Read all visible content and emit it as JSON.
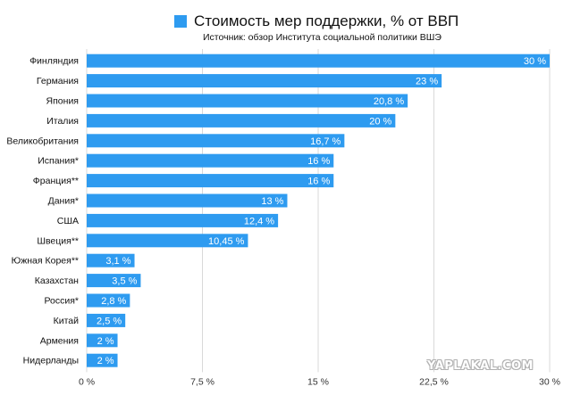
{
  "chart_data": {
    "type": "bar",
    "orientation": "horizontal",
    "title": "Стоимость мер поддержки, % от ВВП",
    "subtitle": "Источник: обзор Института социальной политики ВШЭ",
    "xlim": [
      0,
      30
    ],
    "x_ticks": [
      "0 %",
      "7,5 %",
      "15 %",
      "22,5 %",
      "30 %"
    ],
    "x_tick_values": [
      0,
      7.5,
      15,
      22.5,
      30
    ],
    "grid": "vertical",
    "legend": "top",
    "bar_color": "#2e9bf0",
    "series": [
      {
        "name": "Стоимость мер поддержки, % от ВВП",
        "values": [
          30,
          23,
          20.8,
          20,
          16.7,
          16,
          16,
          13,
          12.4,
          10.45,
          3.1,
          3.5,
          2.8,
          2.5,
          2,
          2
        ]
      }
    ],
    "categories": [
      "Финляндия",
      "Германия",
      "Япония",
      "Италия",
      "Великобритания",
      "Испания*",
      "Франция**",
      "Дания*",
      "США",
      "Швеция**",
      "Южная Корея**",
      "Казахстан",
      "Россия*",
      "Китай",
      "Армения",
      "Нидерланды"
    ],
    "data_labels": [
      "30 %",
      "23 %",
      "20,8 %",
      "20 %",
      "16,7 %",
      "16 %",
      "16 %",
      "13 %",
      "12,4 %",
      "10,45 %",
      "3,1 %",
      "3,5 %",
      "2,8 %",
      "2,5 %",
      "2 %",
      "2 %"
    ]
  },
  "watermark": "YAPLAKAL.COM"
}
